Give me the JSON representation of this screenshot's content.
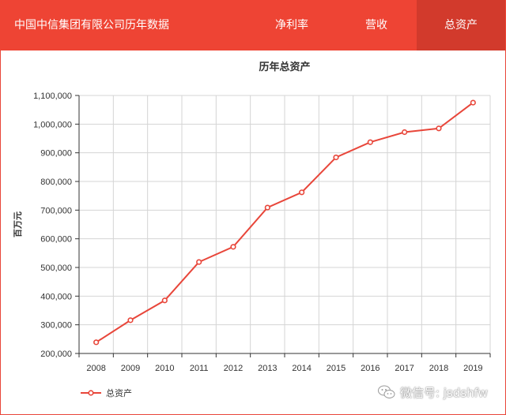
{
  "header": {
    "title": "中国中信集团有限公司历年数据",
    "tabs": [
      {
        "label": "净利率",
        "active": false
      },
      {
        "label": "营收",
        "active": false
      },
      {
        "label": "总资产",
        "active": true
      }
    ],
    "accent": "#ee4434",
    "active_tab_color": "#d23a2c"
  },
  "chart_data": {
    "type": "line",
    "title": "历年总资产",
    "xlabel": "",
    "ylabel": "百万元",
    "categories": [
      "2008",
      "2009",
      "2010",
      "2011",
      "2012",
      "2013",
      "2014",
      "2015",
      "2016",
      "2017",
      "2018",
      "2019"
    ],
    "series": [
      {
        "name": "总资产",
        "color": "#e8463a",
        "values": [
          239000,
          316000,
          385000,
          519000,
          572000,
          709000,
          762000,
          884000,
          937000,
          972000,
          985000,
          1075000
        ]
      }
    ],
    "ylim": [
      200000,
      1100000
    ],
    "yticks": [
      200000,
      300000,
      400000,
      500000,
      600000,
      700000,
      800000,
      900000,
      1000000,
      1100000
    ],
    "ytick_labels": [
      "200,000",
      "300,000",
      "400,000",
      "500,000",
      "600,000",
      "700,000",
      "800,000",
      "900,000",
      "1,000,000",
      "1,100,000"
    ],
    "grid": true,
    "legend_position": "bottom-left"
  },
  "watermark": {
    "text": "微信号: jsdshfw",
    "icon": "wechat-icon"
  }
}
